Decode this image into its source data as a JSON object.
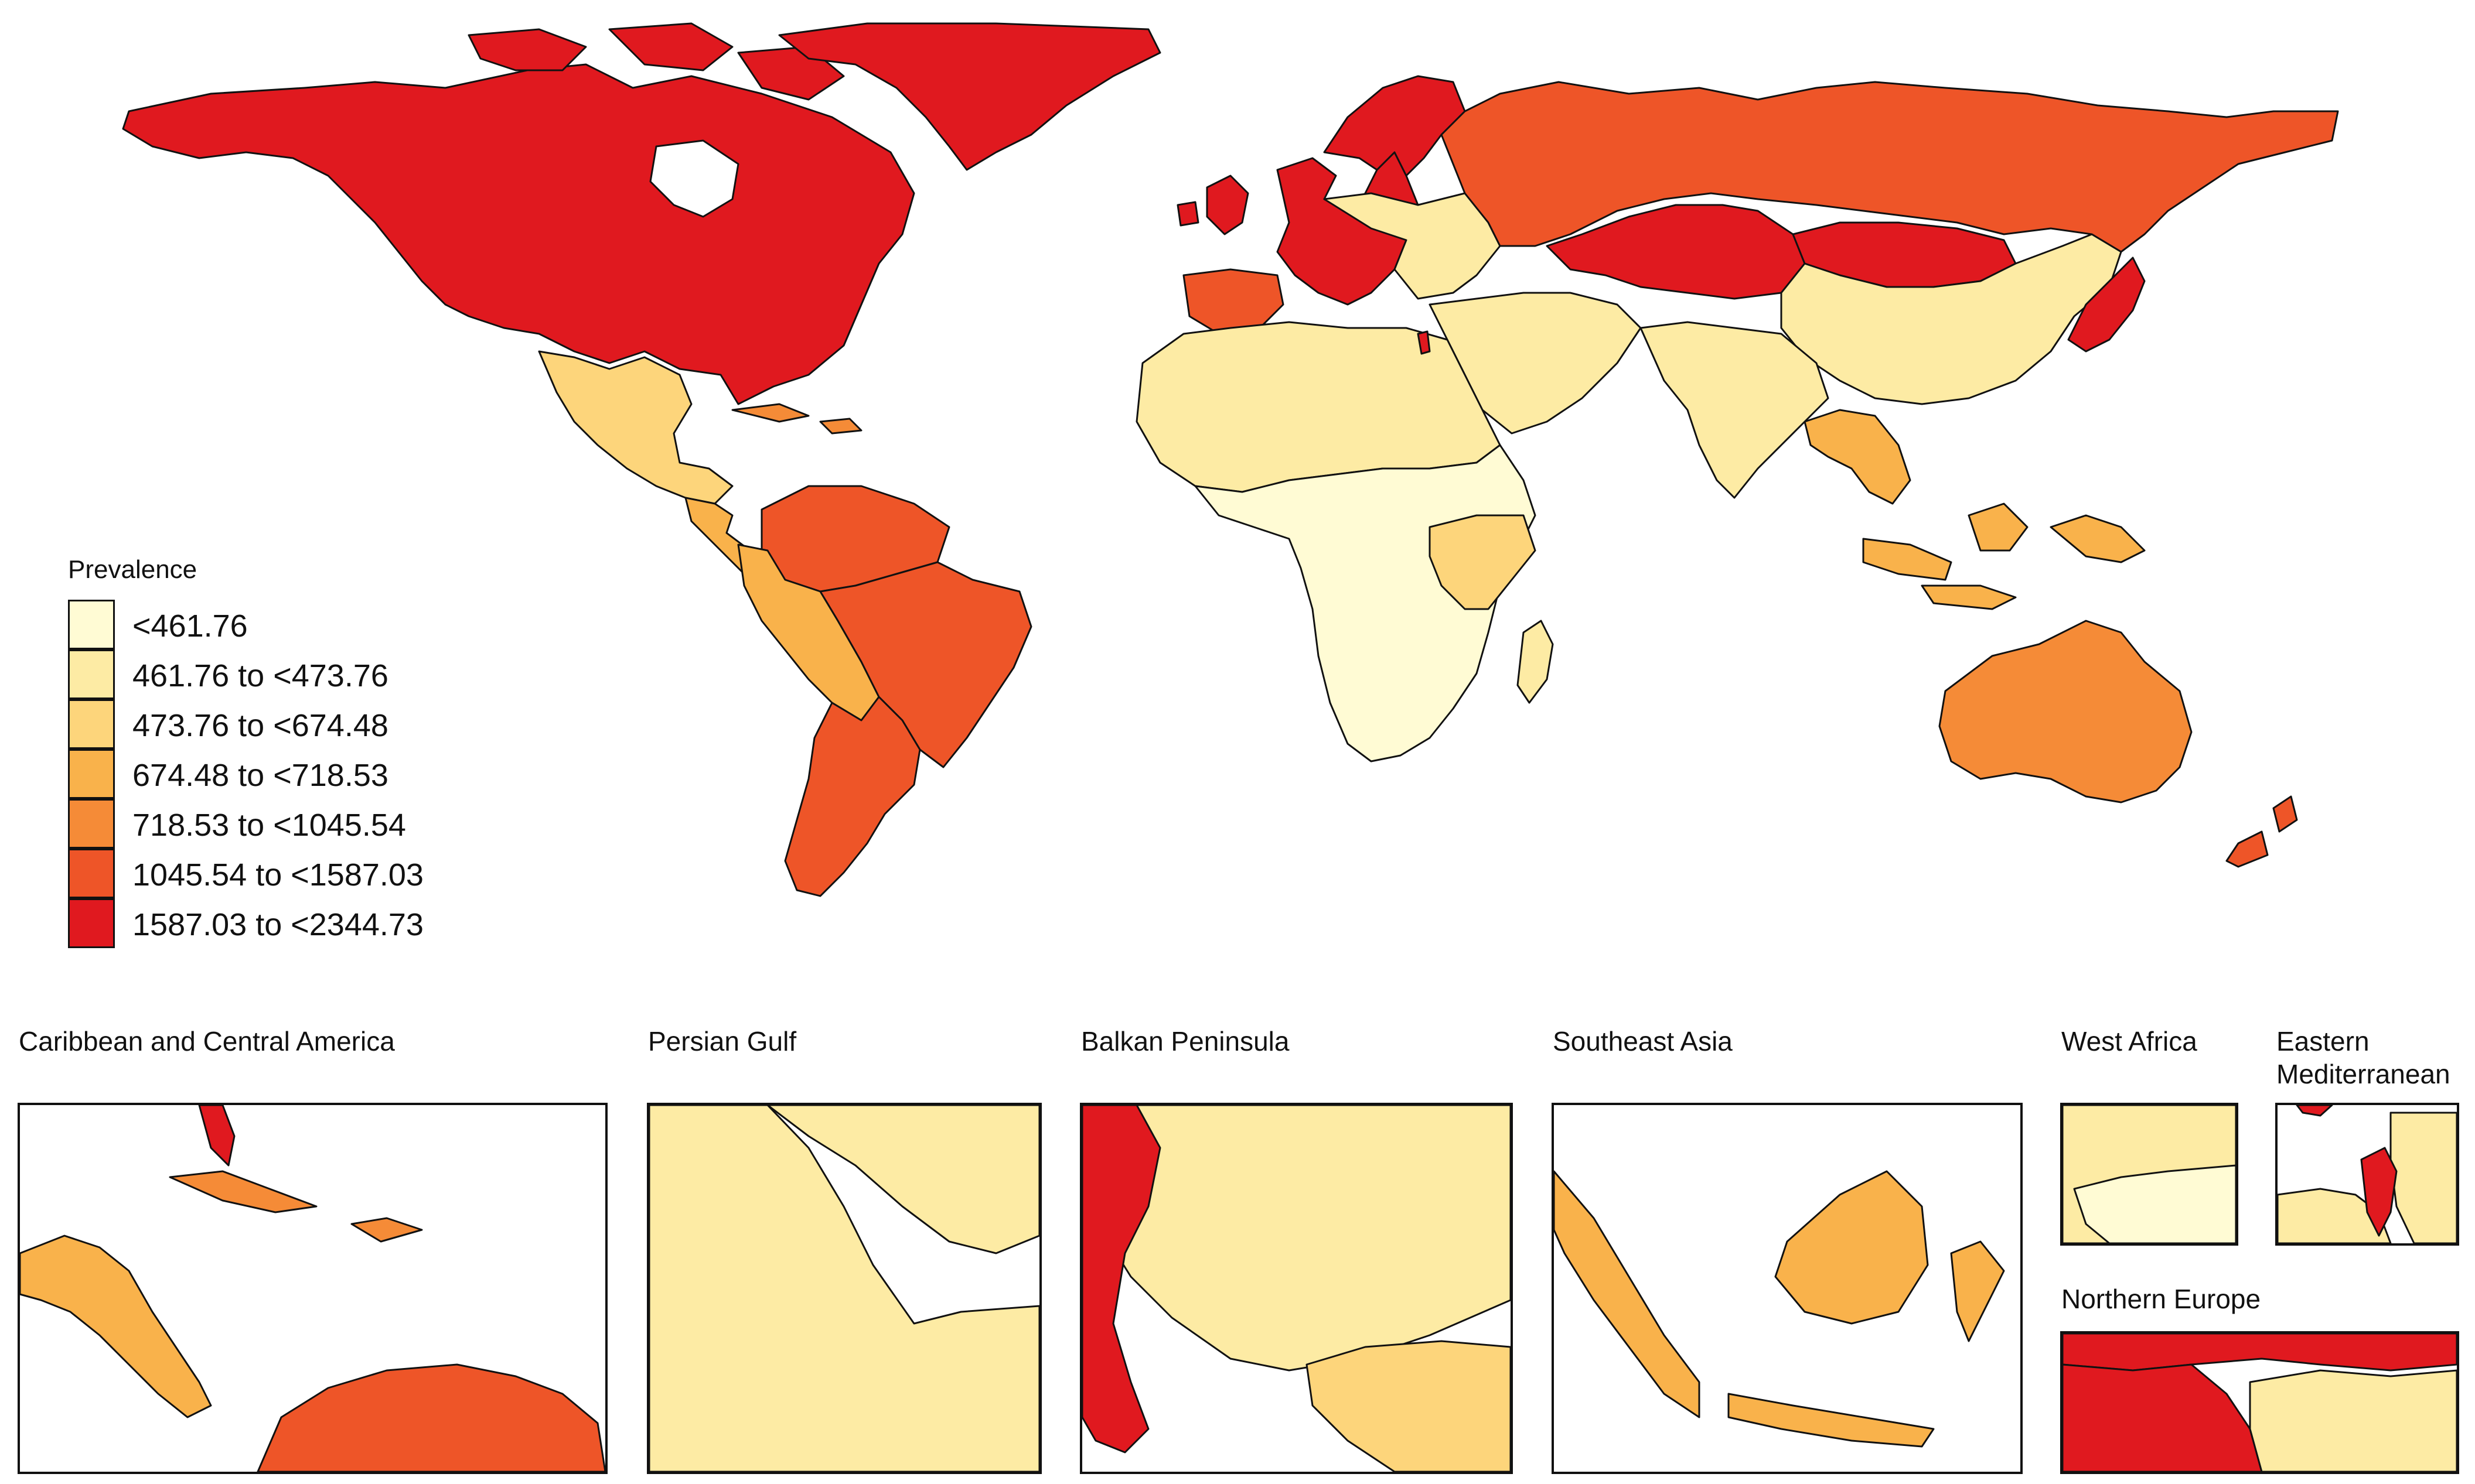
{
  "legend": {
    "title": "Prevalence",
    "items": [
      {
        "label": "<461.76",
        "color": "#FFFBD4"
      },
      {
        "label": "461.76 to <473.76",
        "color": "#FDEBA4"
      },
      {
        "label": "473.76 to <674.48",
        "color": "#FDD57B"
      },
      {
        "label": "674.48 to <718.53",
        "color": "#F9B24B"
      },
      {
        "label": "718.53 to <1045.54",
        "color": "#F58B37"
      },
      {
        "label": "1045.54 to <1587.03",
        "color": "#EE5528"
      },
      {
        "label": "1587.03 to <2344.73",
        "color": "#E0191F"
      }
    ]
  },
  "insets": {
    "caribbean": {
      "title": "Caribbean and Central America"
    },
    "persian_gulf": {
      "title": "Persian Gulf"
    },
    "balkan": {
      "title": "Balkan Peninsula"
    },
    "southeast_asia": {
      "title": "Southeast Asia"
    },
    "west_africa": {
      "title": "West Africa"
    },
    "eastern_med": {
      "title": "Eastern Mediterranean"
    },
    "northern_europe": {
      "title": "Northern Europe"
    }
  },
  "regions": {
    "north_america": 6,
    "greenland": 6,
    "mexico": 2,
    "central_america": 3,
    "caribbean": 4,
    "venezuela_colombia": 5,
    "brazil": 5,
    "peru_bolivia": 3,
    "argentina_chile": 5,
    "western_europe": 6,
    "iberia": 5,
    "eastern_europe": 1,
    "russia": 5,
    "central_asia": 6,
    "mongolia": 6,
    "china": 1,
    "japan": 6,
    "india": 1,
    "middle_east": 1,
    "north_africa": 1,
    "subsaharan_africa": 0,
    "east_africa": 2,
    "southeast_asia": 3,
    "indonesia": 3,
    "australia": 4,
    "new_zealand": 5,
    "madagascar": 1,
    "israel": 6
  }
}
